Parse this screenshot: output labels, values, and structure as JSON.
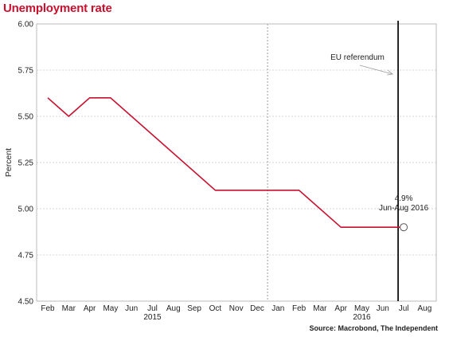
{
  "chart_data": {
    "type": "line",
    "title": "Unemployment rate",
    "ylabel": "Percent",
    "xlabel": "",
    "ylim": [
      4.5,
      6.0
    ],
    "yticks": [
      "6.00",
      "5.75",
      "5.50",
      "5.25",
      "5.00",
      "4.75",
      "4.50"
    ],
    "months": [
      "Feb",
      "Mar",
      "Apr",
      "May",
      "Jun",
      "Jul",
      "Aug",
      "Sep",
      "Oct",
      "Nov",
      "Dec",
      "Jan",
      "Feb",
      "Mar",
      "Apr",
      "May",
      "Jun",
      "Jul",
      "Aug"
    ],
    "years": [
      {
        "label": "2015",
        "month_index": 5
      },
      {
        "label": "2016",
        "month_index": 15
      }
    ],
    "series": [
      {
        "color": "#c8102e",
        "x": [
          "2015-02",
          "2015-03",
          "2015-04",
          "2015-05",
          "2015-10",
          "2016-02",
          "2016-04",
          "2016-07"
        ],
        "values": [
          5.6,
          5.5,
          5.6,
          5.6,
          5.1,
          5.1,
          4.9,
          4.9
        ]
      }
    ],
    "grid": "horizontal-dotted",
    "annotations": [
      {
        "text": "EU referendum",
        "type": "vertical-line",
        "x": "2016-06-23"
      },
      {
        "text": "4.9%",
        "type": "point-label",
        "x": "2016-07",
        "y": 4.9
      },
      {
        "text": "Jun-Aug 2016",
        "type": "point-label",
        "x": "2016-07",
        "y": 4.9
      }
    ],
    "source": "Source: Macrobond, The Independent"
  }
}
